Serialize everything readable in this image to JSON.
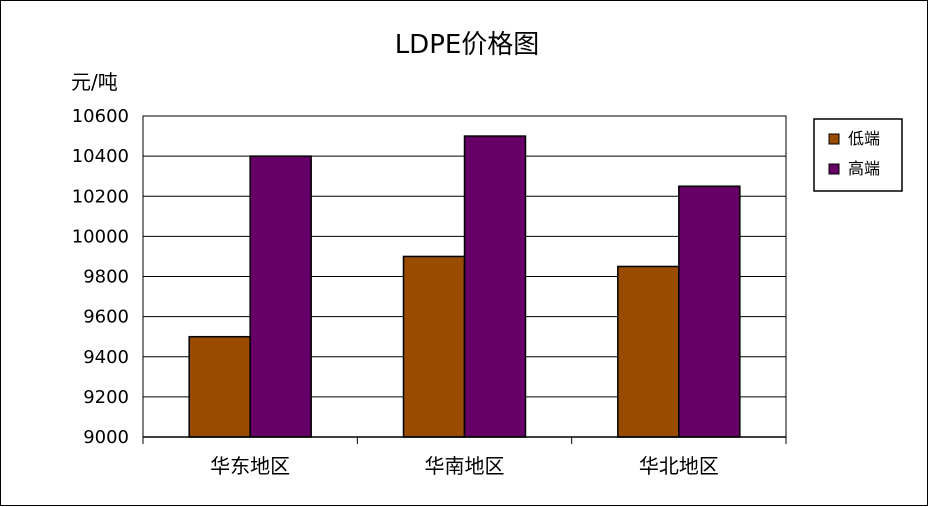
{
  "chart_data": {
    "type": "bar",
    "title": "LDPE价格图",
    "ylabel": "元/吨",
    "xlabel": "",
    "categories": [
      "华东地区",
      "华南地区",
      "华北地区"
    ],
    "series": [
      {
        "name": "低端",
        "color": "#994C00",
        "values": [
          9500,
          9900,
          9850
        ]
      },
      {
        "name": "高端",
        "color": "#660066",
        "values": [
          10400,
          10500,
          10250
        ]
      }
    ],
    "ylim": [
      9000,
      10600
    ],
    "yticks": [
      "9000",
      "9200",
      "9400",
      "9600",
      "9800",
      "10000",
      "10200",
      "10400",
      "10600"
    ],
    "grid": true,
    "legend_position": "right"
  }
}
